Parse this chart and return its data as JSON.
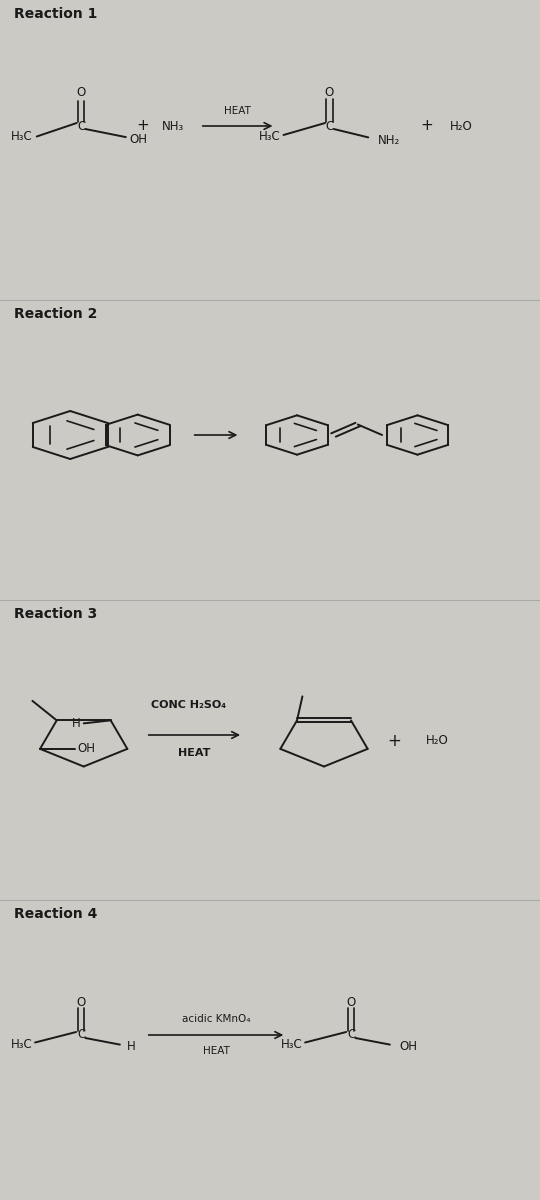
{
  "bg_color": "#cccac4",
  "panel_bg": "#cccac4",
  "line_color": "#1a1a1a",
  "text_color": "#1a1a1a",
  "reactions": [
    {
      "label": "Reaction 1"
    },
    {
      "label": "Reaction 2"
    },
    {
      "label": "Reaction 3"
    },
    {
      "label": "Reaction 4"
    }
  ],
  "font_size_label": 10,
  "font_size_chem": 8.5,
  "font_size_reagent": 7.5
}
